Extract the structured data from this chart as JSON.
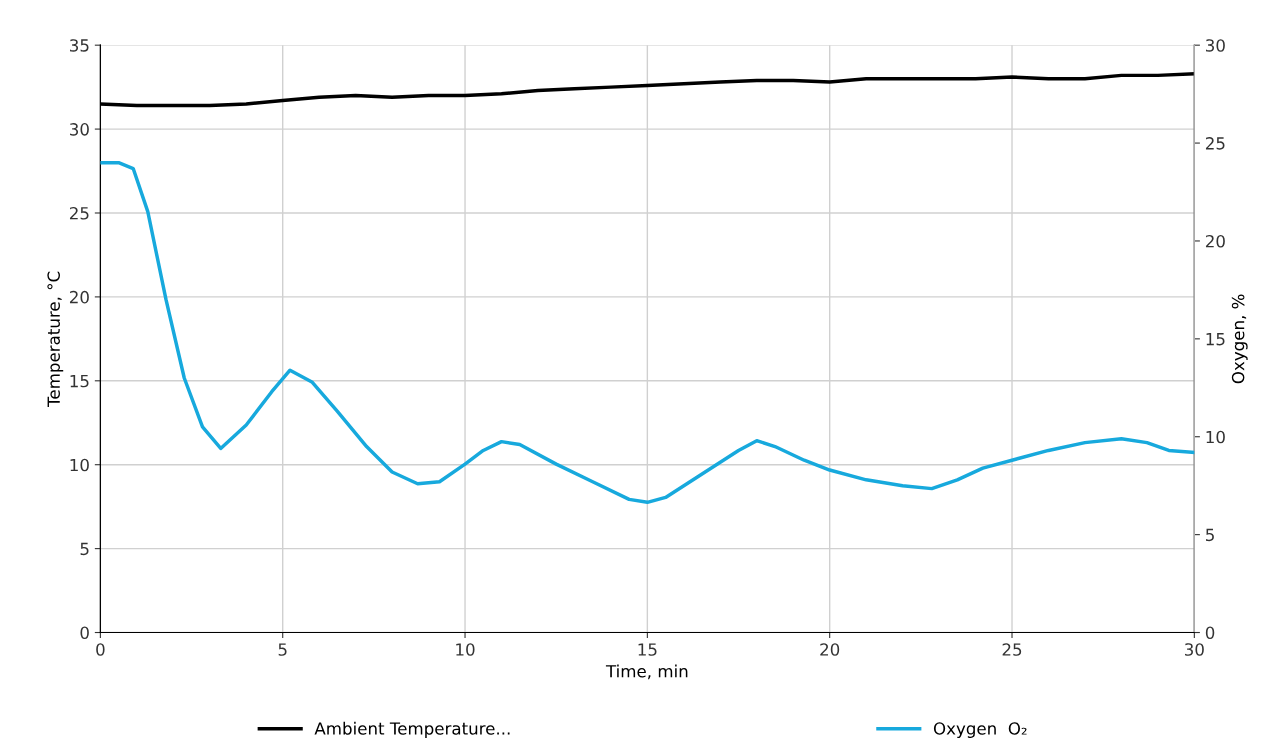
{
  "chart_data": {
    "type": "line",
    "xlabel": "Time, min",
    "ylabel": "Temperature, °C",
    "y2label": "Oxygen, %",
    "xlim": [
      0,
      30
    ],
    "xticks": [
      0,
      5,
      10,
      15,
      20,
      25,
      30
    ],
    "ylim": [
      0,
      35
    ],
    "yticks": [
      0,
      5,
      10,
      15,
      20,
      25,
      30,
      35
    ],
    "y2lim": [
      0,
      30
    ],
    "y2ticks": [
      0,
      5,
      10,
      15,
      20,
      25,
      30
    ],
    "grid": true,
    "legend": "bottom",
    "marker": "none",
    "line_style": "solid",
    "series": [
      {
        "name": "Ambient Temperature...",
        "color": "#000000",
        "x": [
          0,
          1,
          2,
          3,
          4,
          5,
          6,
          7,
          8,
          9,
          10,
          11,
          12,
          13,
          14,
          15,
          16,
          17,
          18,
          19,
          20,
          21,
          22,
          23,
          24,
          25,
          26,
          27,
          28,
          29,
          30
        ],
        "values": [
          31.5,
          31.4,
          31.4,
          31.4,
          31.5,
          31.7,
          31.9,
          32.0,
          31.9,
          32.0,
          32.0,
          32.1,
          32.3,
          32.4,
          32.5,
          32.6,
          32.7,
          32.8,
          32.9,
          32.9,
          32.8,
          33.0,
          33.0,
          33.0,
          33.0,
          33.1,
          33.0,
          33.0,
          33.2,
          33.2,
          33.3
        ]
      },
      {
        "name": "Oxygen  O₂",
        "color": "#17a9dd",
        "axis": "y2",
        "x": [
          0,
          0.5,
          0.9,
          1.3,
          1.8,
          2.3,
          2.8,
          3.3,
          4.0,
          4.7,
          5.2,
          5.8,
          6.5,
          7.3,
          8.0,
          8.7,
          9.3,
          10.0,
          10.5,
          11.0,
          11.5,
          12.5,
          13.5,
          14.5,
          15.0,
          15.5,
          16.5,
          17.5,
          18.0,
          18.5,
          19.3,
          20.0,
          21.0,
          22.0,
          22.8,
          23.5,
          24.2,
          25.0,
          26.0,
          27.0,
          28.0,
          28.7,
          29.3,
          30.0
        ],
        "values": [
          24.0,
          24.0,
          23.7,
          21.5,
          17.0,
          13.0,
          10.5,
          9.4,
          10.6,
          12.3,
          13.4,
          12.8,
          11.3,
          9.5,
          8.2,
          7.6,
          7.7,
          8.6,
          9.3,
          9.75,
          9.6,
          8.6,
          7.7,
          6.8,
          6.65,
          6.9,
          8.1,
          9.3,
          9.8,
          9.5,
          8.8,
          8.3,
          7.8,
          7.5,
          7.35,
          7.8,
          8.4,
          8.8,
          9.3,
          9.7,
          9.9,
          9.7,
          9.3,
          9.2
        ]
      }
    ]
  }
}
